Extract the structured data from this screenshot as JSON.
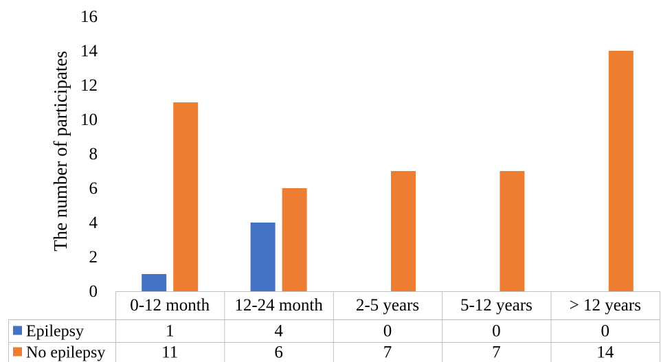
{
  "chart_data": {
    "type": "bar",
    "ylabel": "The number of participates",
    "ylim": [
      0,
      16
    ],
    "yticks": [
      0,
      2,
      4,
      6,
      8,
      10,
      12,
      14,
      16
    ],
    "grid": false,
    "categories": [
      "0-12 month",
      "12-24 month",
      "2-5 years",
      "5-12 years",
      "> 12 years"
    ],
    "series": [
      {
        "name": "Epilepsy",
        "color": "#4472C4",
        "values": [
          1,
          4,
          0,
          0,
          0
        ]
      },
      {
        "name": "No epilepsy",
        "color": "#ED7D31",
        "values": [
          11,
          6,
          7,
          7,
          14
        ]
      }
    ],
    "data_table": true
  }
}
